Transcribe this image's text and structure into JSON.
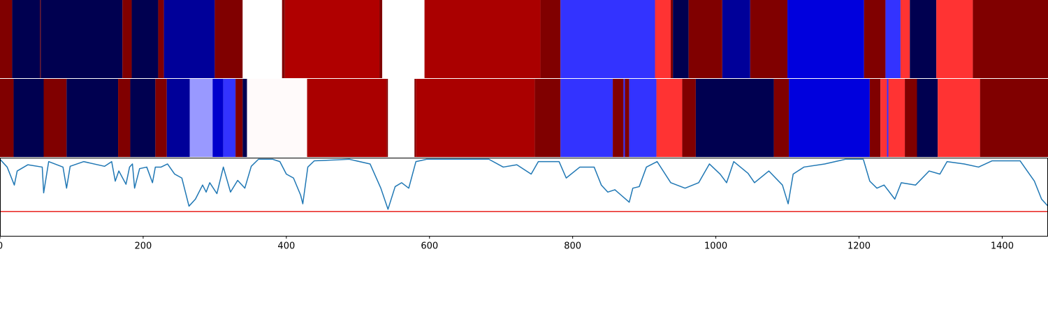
{
  "chart_data": [
    {
      "type": "strip",
      "xlim": [
        0,
        1464
      ],
      "edges": [
        0,
        17,
        56,
        57,
        171,
        184,
        221,
        229,
        300,
        339,
        394,
        398,
        530,
        534,
        593,
        755,
        783,
        915,
        937,
        940,
        962,
        1009,
        1048,
        1100,
        1207,
        1237,
        1258,
        1271,
        1308,
        1359,
        1464
      ],
      "colors": [
        "#800000",
        "#000050",
        "#800000",
        "#000050",
        "#800000",
        "#000050",
        "#800000",
        "#000099",
        "#800000",
        "#ffffff",
        "#800000",
        "#b00000",
        "#800000",
        "#ffffff",
        "#aa0000",
        "#800000",
        "#3333ff",
        "#ff3333",
        "#800000",
        "#000050",
        "#800000",
        "#000099",
        "#800000",
        "#0000dd",
        "#800000",
        "#3333ff",
        "#ff3333",
        "#000050",
        "#ff3333",
        "#800000"
      ]
    },
    {
      "type": "strip",
      "xlim": [
        0,
        1464
      ],
      "edges": [
        0,
        19,
        61,
        93,
        165,
        182,
        217,
        233,
        265,
        297,
        312,
        329,
        339,
        345,
        429,
        540,
        542,
        579,
        581,
        747,
        783,
        856,
        871,
        873,
        879,
        917,
        953,
        972,
        1081,
        1102,
        1215,
        1230,
        1239,
        1241,
        1264,
        1281,
        1310,
        1369,
        1464
      ],
      "colors": [
        "#800000",
        "#000050",
        "#800000",
        "#000050",
        "#800000",
        "#000050",
        "#800000",
        "#000099",
        "#9999ff",
        "#0000cc",
        "#3333ff",
        "#800000",
        "#000050",
        "#fffafa",
        "#aa0000",
        "#800000",
        "#ffffff",
        "#800000",
        "#aa0000",
        "#800000",
        "#3333ff",
        "#800000",
        "#3333ff",
        "#800000",
        "#3333ff",
        "#ff3333",
        "#800000",
        "#000050",
        "#800000",
        "#0000dd",
        "#800000",
        "#ff3333",
        "#3333ff",
        "#ff3333",
        "#800000",
        "#000050",
        "#ff3333",
        "#800000"
      ]
    },
    {
      "type": "line",
      "xlim": [
        0,
        1464
      ],
      "xticks": [
        0,
        200,
        400,
        600,
        800,
        1000,
        1200,
        1400
      ],
      "ylim": [
        0,
        1
      ],
      "color": "#1f77b4",
      "hline": {
        "value": 0.31,
        "color": "#e8211d"
      },
      "x": [
        0,
        10,
        20,
        24,
        39,
        59,
        61,
        68,
        88,
        93,
        98,
        117,
        146,
        156,
        161,
        166,
        176,
        181,
        185,
        188,
        195,
        205,
        213,
        217,
        225,
        234,
        244,
        254,
        264,
        273,
        283,
        288,
        293,
        303,
        312,
        322,
        332,
        342,
        351,
        361,
        381,
        391,
        400,
        410,
        420,
        423,
        430,
        439,
        488,
        517,
        532,
        542,
        552,
        561,
        571,
        581,
        596,
        683,
        703,
        722,
        742,
        752,
        781,
        791,
        810,
        830,
        840,
        849,
        859,
        874,
        879,
        884,
        893,
        903,
        918,
        937,
        957,
        976,
        991,
        1006,
        1015,
        1025,
        1045,
        1054,
        1074,
        1093,
        1101,
        1108,
        1123,
        1152,
        1181,
        1206,
        1215,
        1225,
        1235,
        1250,
        1259,
        1279,
        1298,
        1313,
        1323,
        1347,
        1367,
        1386,
        1425,
        1435,
        1445,
        1455,
        1464
      ],
      "values": [
        0.98,
        0.88,
        0.65,
        0.83,
        0.91,
        0.88,
        0.55,
        0.95,
        0.88,
        0.61,
        0.89,
        0.95,
        0.89,
        0.95,
        0.7,
        0.83,
        0.66,
        0.88,
        0.92,
        0.61,
        0.86,
        0.88,
        0.68,
        0.88,
        0.88,
        0.92,
        0.79,
        0.74,
        0.38,
        0.47,
        0.65,
        0.56,
        0.68,
        0.54,
        0.88,
        0.56,
        0.71,
        0.61,
        0.89,
        0.98,
        0.98,
        0.95,
        0.79,
        0.74,
        0.52,
        0.41,
        0.88,
        0.96,
        0.98,
        0.92,
        0.61,
        0.34,
        0.63,
        0.68,
        0.61,
        0.95,
        0.98,
        0.98,
        0.88,
        0.91,
        0.79,
        0.95,
        0.95,
        0.74,
        0.88,
        0.88,
        0.65,
        0.56,
        0.59,
        0.47,
        0.43,
        0.61,
        0.63,
        0.88,
        0.95,
        0.68,
        0.61,
        0.68,
        0.92,
        0.79,
        0.68,
        0.95,
        0.8,
        0.68,
        0.83,
        0.65,
        0.41,
        0.79,
        0.88,
        0.92,
        0.98,
        0.98,
        0.7,
        0.61,
        0.65,
        0.47,
        0.68,
        0.65,
        0.83,
        0.79,
        0.95,
        0.92,
        0.88,
        0.96,
        0.96,
        0.83,
        0.7,
        0.47,
        0.38
      ]
    }
  ]
}
